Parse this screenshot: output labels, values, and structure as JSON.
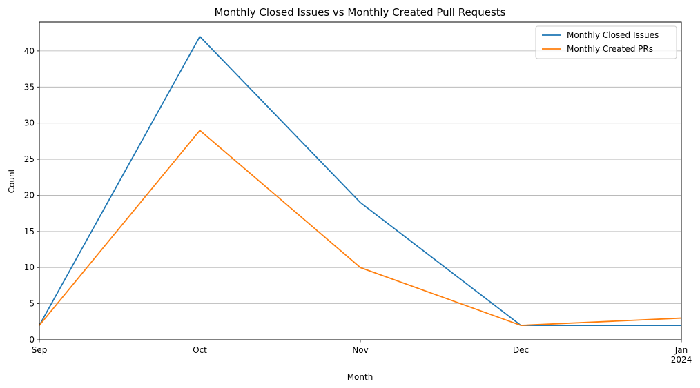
{
  "chart_data": {
    "type": "line",
    "title": "Monthly Closed Issues vs Monthly Created Pull Requests",
    "xlabel": "Month",
    "ylabel": "Count",
    "x": [
      "2023-09",
      "2023-10",
      "2023-11",
      "2023-12",
      "2024-01"
    ],
    "x_tick_labels": [
      {
        "label": "Sep",
        "sublabel": ""
      },
      {
        "label": "Oct",
        "sublabel": ""
      },
      {
        "label": "Nov",
        "sublabel": ""
      },
      {
        "label": "Dec",
        "sublabel": ""
      },
      {
        "label": "Jan",
        "sublabel": "2024"
      }
    ],
    "ylim": [
      0,
      44
    ],
    "y_ticks": [
      0,
      5,
      10,
      15,
      20,
      25,
      30,
      35,
      40
    ],
    "grid": "horizontal",
    "legend_position": "top-right",
    "series": [
      {
        "name": "Monthly Closed Issues",
        "color": "#1f77b4",
        "values": [
          2,
          42,
          19,
          2,
          2
        ]
      },
      {
        "name": "Monthly Created PRs",
        "color": "#ff7f0e",
        "values": [
          2,
          29,
          10,
          2,
          3
        ]
      }
    ]
  }
}
